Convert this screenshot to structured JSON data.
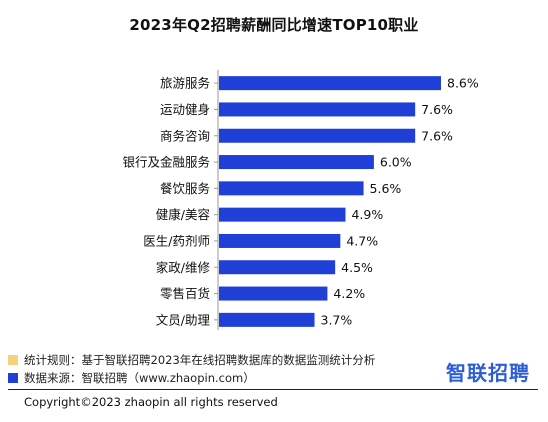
{
  "chart_data": {
    "type": "bar",
    "orientation": "horizontal",
    "title": "2023年Q2招聘薪酬同比增速TOP10职业",
    "categories": [
      "旅游服务",
      "运动健身",
      "商务咨询",
      "银行及金融服务",
      "餐饮服务",
      "健康/美容",
      "医生/药剂师",
      "家政/维修",
      "零售百货",
      "文员/助理"
    ],
    "values": [
      8.6,
      7.6,
      7.6,
      6.0,
      5.6,
      4.9,
      4.7,
      4.5,
      4.2,
      3.7
    ],
    "value_labels": [
      "8.6%",
      "7.6%",
      "7.6%",
      "6.0%",
      "5.6%",
      "4.9%",
      "4.7%",
      "4.5%",
      "4.2%",
      "3.7%"
    ],
    "xlim": [
      0,
      8.6
    ],
    "bar_color": "#1f3fd6",
    "grid": false,
    "legend": "none"
  },
  "footer": {
    "rule_label": "统计规则：基于智联招聘2023年在线招聘数据库的数据监测统计分析",
    "rule_color": "#f5d27a",
    "source_label": "数据来源：智联招聘（www.zhaopin.com）",
    "source_color": "#1f3fd6",
    "logo_text": "智联招聘",
    "copyright": "Copyright©2023 zhaopin all rights reserved"
  }
}
